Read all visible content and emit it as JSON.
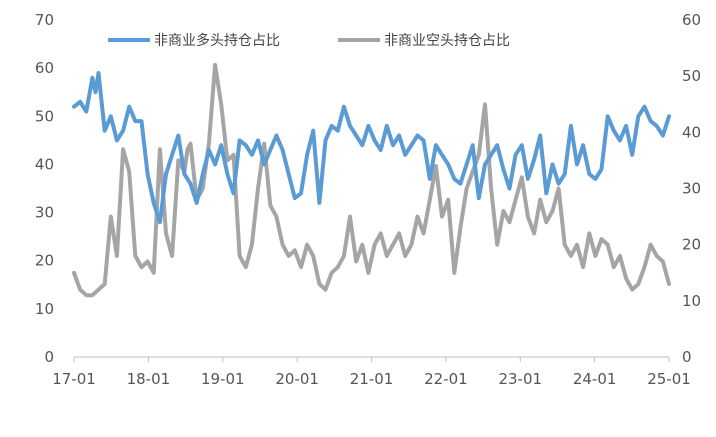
{
  "chart_data": {
    "type": "line",
    "title": "",
    "xlabel": "",
    "ylabel": "",
    "grid": false,
    "legend_position": "top",
    "x_ticks": [
      "17-01",
      "18-01",
      "19-01",
      "20-01",
      "21-01",
      "22-01",
      "23-01",
      "24-01",
      "25-01"
    ],
    "x_range": [
      0,
      97
    ],
    "y_left": {
      "range": [
        0,
        70
      ],
      "ticks": [
        "0",
        "10",
        "20",
        "30",
        "40",
        "50",
        "60",
        "70"
      ]
    },
    "y_right": {
      "range": [
        0,
        60
      ],
      "ticks": [
        "0",
        "10",
        "20",
        "30",
        "40",
        "50",
        "60"
      ]
    },
    "series": [
      {
        "name": "非商业多头持仓占比",
        "axis": "left",
        "color": "#5b9bd5",
        "x": [
          0,
          1,
          2,
          3,
          3.5,
          4,
          5,
          6,
          7,
          8,
          9,
          10,
          11,
          12,
          13,
          14,
          15,
          16,
          17,
          18,
          19,
          20,
          21,
          22,
          23,
          24,
          25,
          26,
          27,
          28,
          29,
          30,
          31,
          32,
          33,
          34,
          35,
          36,
          37,
          38,
          39,
          40,
          41,
          42,
          43,
          44,
          45,
          46,
          47,
          48,
          49,
          50,
          51,
          52,
          53,
          54,
          55,
          56,
          57,
          58,
          59,
          60,
          61,
          62,
          63,
          64,
          65,
          66,
          67,
          68,
          69,
          70,
          71,
          72,
          73,
          74,
          75,
          76,
          77,
          78,
          79,
          80,
          81,
          82,
          83,
          84,
          85,
          86,
          87,
          88,
          89,
          90,
          91,
          92,
          93,
          94,
          95,
          96,
          97
        ],
        "values": [
          52,
          53,
          51,
          58,
          55,
          59,
          47,
          50,
          45,
          47,
          52,
          49,
          49,
          38,
          32,
          28,
          38,
          42,
          46,
          38,
          36,
          32,
          38,
          43,
          40,
          44,
          38,
          34,
          45,
          44,
          42,
          45,
          40,
          43,
          46,
          43,
          38,
          33,
          34,
          42,
          47,
          32,
          45,
          48,
          47,
          52,
          48,
          46,
          44,
          48,
          45,
          43,
          48,
          44,
          46,
          42,
          44,
          46,
          45,
          37,
          44,
          42,
          40,
          37,
          36,
          40,
          44,
          33,
          40,
          42,
          44,
          39,
          35,
          42,
          44,
          37,
          41,
          46,
          34,
          40,
          36,
          38,
          48,
          40,
          44,
          38,
          37,
          39,
          50,
          47,
          45,
          48,
          42,
          50,
          52,
          49,
          48,
          46,
          50
        ]
      },
      {
        "name": "非商业空头持仓占比",
        "axis": "right",
        "color": "#a5a5a5",
        "x": [
          0,
          1,
          2,
          3,
          4,
          5,
          6,
          7,
          8,
          9,
          10,
          11,
          12,
          13,
          14,
          15,
          16,
          17,
          18,
          18.5,
          19,
          20,
          21,
          22,
          23,
          24,
          25,
          26,
          27,
          28,
          29,
          30,
          31,
          32,
          33,
          34,
          35,
          36,
          37,
          38,
          39,
          40,
          41,
          42,
          43,
          44,
          45,
          46,
          47,
          48,
          49,
          50,
          51,
          52,
          53,
          54,
          55,
          56,
          57,
          58,
          59,
          60,
          61,
          62,
          63,
          64,
          65,
          66,
          67,
          68,
          69,
          70,
          71,
          72,
          73,
          74,
          75,
          76,
          77,
          78,
          79,
          80,
          81,
          82,
          83,
          84,
          85,
          86,
          87,
          88,
          89,
          90,
          91,
          92,
          93,
          94,
          95,
          96,
          97
        ],
        "values": [
          15,
          12,
          11,
          11,
          12,
          13,
          25,
          18,
          37,
          33,
          18,
          16,
          17,
          15,
          37,
          22,
          18,
          35,
          33,
          37,
          38,
          28,
          30,
          38,
          52,
          45,
          35,
          36,
          18,
          16,
          20,
          30,
          38,
          27,
          25,
          20,
          18,
          19,
          16,
          20,
          18,
          13,
          12,
          15,
          16,
          18,
          25,
          17,
          20,
          15,
          20,
          22,
          18,
          20,
          22,
          18,
          20,
          25,
          22,
          28,
          34,
          25,
          28,
          15,
          23,
          30,
          33,
          36,
          45,
          30,
          20,
          26,
          24,
          28,
          32,
          25,
          22,
          28,
          24,
          26,
          30,
          20,
          18,
          20,
          16,
          22,
          18,
          21,
          20,
          16,
          18,
          14,
          12,
          13,
          16,
          20,
          18,
          17,
          13
        ]
      }
    ]
  }
}
